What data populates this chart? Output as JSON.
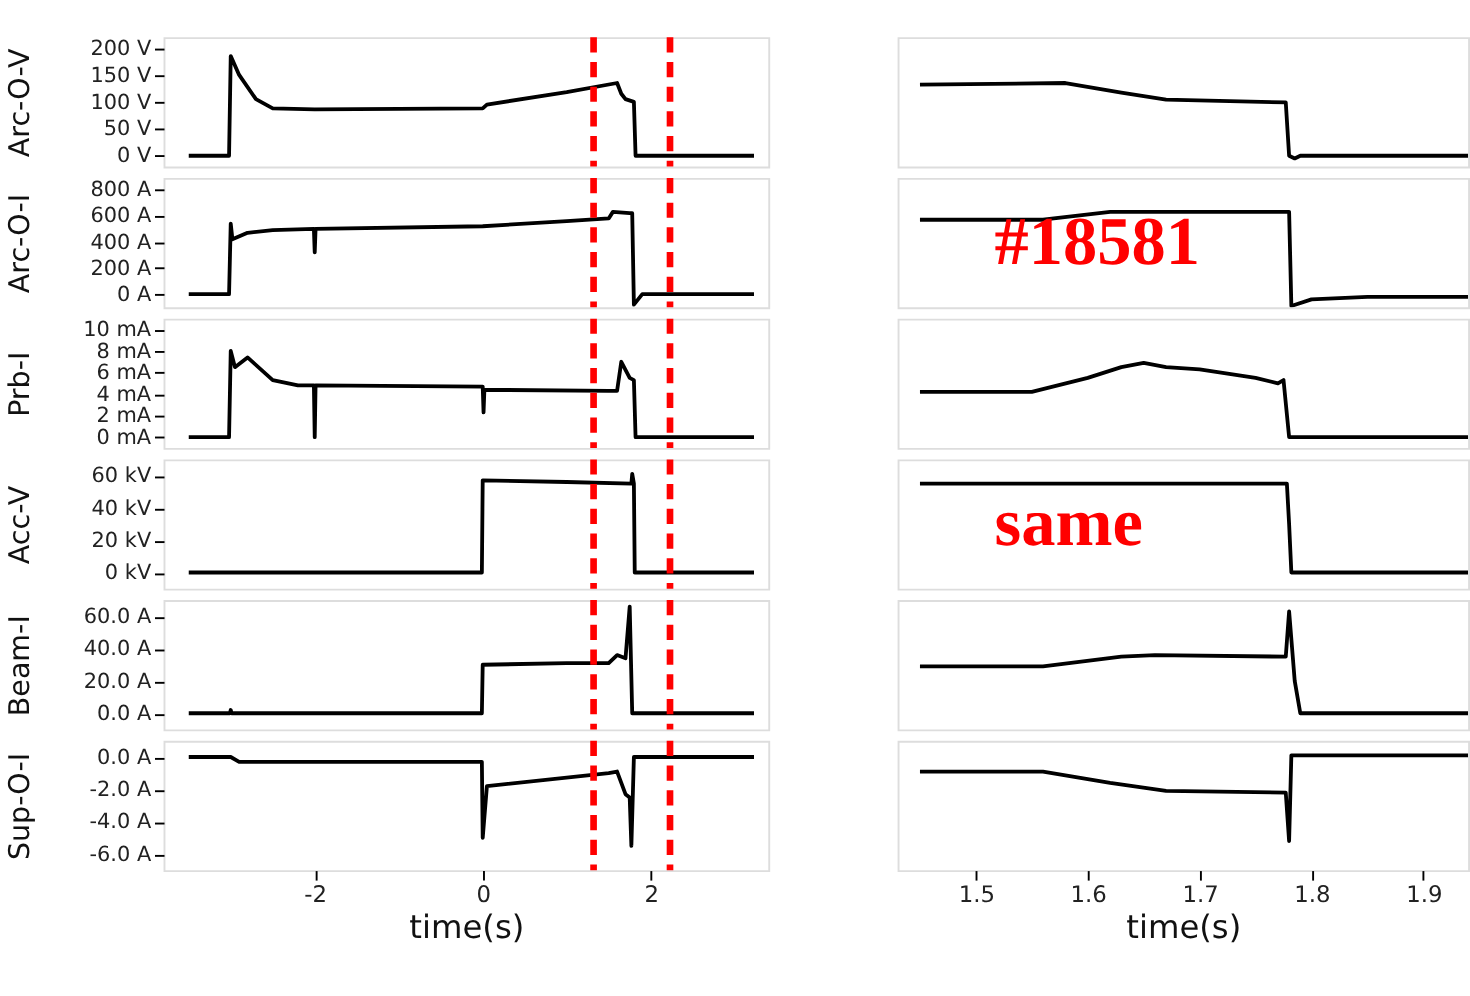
{
  "chart_data": [
    {
      "type": "line",
      "ylabel": "Arc-O-V",
      "tick_labels": "y",
      "xlim": [
        -3.8,
        3.4
      ],
      "ylim": [
        -20,
        220
      ],
      "yticks": [
        {
          "value": 0,
          "label": "0 V"
        },
        {
          "value": 50,
          "label": "50 V"
        },
        {
          "value": 100,
          "label": "100 V"
        },
        {
          "value": 150,
          "label": "150 V"
        },
        {
          "value": 200,
          "label": "200 V"
        }
      ],
      "color": "#000000",
      "ref_lines": [
        {
          "axis": "x",
          "value": 1.32,
          "color": "#ff0000",
          "line_style": "dashed"
        },
        {
          "axis": "x",
          "value": 2.23,
          "color": "#ff0000",
          "line_style": "dashed"
        }
      ],
      "x": [
        -3.5,
        -3.02,
        -3.0,
        -2.9,
        -2.7,
        -2.5,
        -2.0,
        0.0,
        0.05,
        1.0,
        1.6,
        1.65,
        1.7,
        1.8,
        1.82,
        3.23
      ],
      "values": [
        0,
        0,
        185,
        150,
        105,
        88,
        86,
        88,
        95,
        118,
        135,
        115,
        105,
        100,
        0,
        0
      ]
    },
    {
      "type": "line",
      "tick_labels": false,
      "xlim": [
        1.43,
        1.94
      ],
      "ylim": [
        -20,
        220
      ],
      "color": "#000000",
      "x": [
        1.45,
        1.58,
        1.63,
        1.67,
        1.777,
        1.78,
        1.785,
        1.79,
        1.94
      ],
      "values": [
        132,
        135,
        117,
        104,
        99,
        0,
        -5,
        0,
        0
      ]
    },
    {
      "type": "line",
      "ylabel": "Arc-O-I",
      "tick_labels": "y",
      "xlim": [
        -3.8,
        3.4
      ],
      "ylim": [
        -100,
        890
      ],
      "yticks": [
        {
          "value": 0,
          "label": "0 A"
        },
        {
          "value": 200,
          "label": "200 A"
        },
        {
          "value": 400,
          "label": "400 A"
        },
        {
          "value": 600,
          "label": "600 A"
        },
        {
          "value": 800,
          "label": "800 A"
        }
      ],
      "color": "#000000",
      "ref_lines": [
        {
          "axis": "x",
          "value": 1.32,
          "color": "#ff0000",
          "line_style": "dashed"
        },
        {
          "axis": "x",
          "value": 2.23,
          "color": "#ff0000",
          "line_style": "dashed"
        }
      ],
      "x": [
        -3.5,
        -3.02,
        -3.0,
        -2.98,
        -2.8,
        -2.5,
        -2.01,
        -2.0,
        -1.99,
        0.0,
        1.0,
        1.5,
        1.55,
        1.75,
        1.78,
        1.8,
        1.9,
        3.23
      ],
      "values": [
        0,
        0,
        540,
        420,
        470,
        490,
        500,
        320,
        500,
        520,
        560,
        580,
        630,
        620,
        620,
        -80,
        0,
        0
      ]
    },
    {
      "type": "line",
      "tick_labels": false,
      "xlim": [
        1.43,
        1.94
      ],
      "ylim": [
        -100,
        890
      ],
      "color": "#000000",
      "annotations": [
        "#18581"
      ],
      "x": [
        1.45,
        1.56,
        1.62,
        1.78,
        1.782,
        1.8,
        1.85,
        1.9,
        1.94
      ],
      "values": [
        570,
        570,
        630,
        630,
        -90,
        -40,
        -20,
        -20,
        -20
      ]
    },
    {
      "type": "line",
      "ylabel": "Prb-I",
      "tick_labels": "y",
      "xlim": [
        -3.8,
        3.4
      ],
      "ylim": [
        -1,
        11
      ],
      "yticks": [
        {
          "value": 0,
          "label": "0 mA"
        },
        {
          "value": 2,
          "label": "2 mA"
        },
        {
          "value": 4,
          "label": "4 mA"
        },
        {
          "value": 6,
          "label": "6 mA"
        },
        {
          "value": 8,
          "label": "8 mA"
        },
        {
          "value": 10,
          "label": "10 mA"
        }
      ],
      "color": "#000000",
      "ref_lines": [
        {
          "axis": "x",
          "value": 1.32,
          "color": "#ff0000",
          "line_style": "dashed"
        },
        {
          "axis": "x",
          "value": 2.23,
          "color": "#ff0000",
          "line_style": "dashed"
        }
      ],
      "x": [
        -3.5,
        -3.02,
        -3.0,
        -2.95,
        -2.8,
        -2.5,
        -2.2,
        -2.01,
        -2.0,
        -1.99,
        0.0,
        0.01,
        0.02,
        1.5,
        1.6,
        1.65,
        1.75,
        1.8,
        1.82,
        3.23
      ],
      "values": [
        0,
        0,
        8,
        6.5,
        7.4,
        5.3,
        4.8,
        4.8,
        0,
        4.8,
        4.7,
        2.3,
        4.4,
        4.3,
        4.3,
        7,
        5.5,
        5.3,
        0,
        0
      ]
    },
    {
      "type": "line",
      "tick_labels": false,
      "xlim": [
        1.43,
        1.94
      ],
      "ylim": [
        -1,
        11
      ],
      "color": "#000000",
      "x": [
        1.45,
        1.55,
        1.6,
        1.63,
        1.65,
        1.67,
        1.7,
        1.75,
        1.77,
        1.775,
        1.78,
        1.94
      ],
      "values": [
        4.2,
        4.2,
        5.5,
        6.5,
        6.9,
        6.5,
        6.3,
        5.5,
        5.0,
        5.3,
        0,
        0
      ]
    },
    {
      "type": "line",
      "ylabel": "Acc-V",
      "tick_labels": "y",
      "xlim": [
        -3.8,
        3.4
      ],
      "ylim": [
        -10,
        70
      ],
      "yticks": [
        {
          "value": 0,
          "label": "0 kV"
        },
        {
          "value": 20,
          "label": "20 kV"
        },
        {
          "value": 40,
          "label": "40 kV"
        },
        {
          "value": 60,
          "label": "60 kV"
        }
      ],
      "color": "#000000",
      "ref_lines": [
        {
          "axis": "x",
          "value": 1.32,
          "color": "#ff0000",
          "line_style": "dashed"
        },
        {
          "axis": "x",
          "value": 2.23,
          "color": "#ff0000",
          "line_style": "dashed"
        }
      ],
      "x": [
        -3.5,
        -0.01,
        0.0,
        1.0,
        1.77,
        1.78,
        1.8,
        1.81,
        3.23
      ],
      "values": [
        0,
        0,
        57,
        56,
        55,
        61,
        55,
        0,
        0
      ]
    },
    {
      "type": "line",
      "tick_labels": false,
      "xlim": [
        1.43,
        1.94
      ],
      "ylim": [
        -10,
        70
      ],
      "color": "#000000",
      "annotations": [
        "same"
      ],
      "x": [
        1.45,
        1.778,
        1.78,
        1.782,
        1.94
      ],
      "values": [
        55,
        55,
        30,
        0,
        0
      ]
    },
    {
      "type": "line",
      "ylabel": "Beam-I",
      "tick_labels": "y",
      "xlim": [
        -3.8,
        3.4
      ],
      "ylim": [
        -10,
        70
      ],
      "yticks": [
        {
          "value": 0,
          "label": "0.0 A"
        },
        {
          "value": 20,
          "label": "20.0 A"
        },
        {
          "value": 40,
          "label": "40.0 A"
        },
        {
          "value": 60,
          "label": "60.0 A"
        }
      ],
      "color": "#000000",
      "ref_lines": [
        {
          "axis": "x",
          "value": 1.32,
          "color": "#ff0000",
          "line_style": "dashed"
        },
        {
          "axis": "x",
          "value": 2.23,
          "color": "#ff0000",
          "line_style": "dashed"
        }
      ],
      "x": [
        -3.5,
        -3.01,
        -3.0,
        -2.99,
        -0.01,
        0.0,
        1.0,
        1.5,
        1.6,
        1.7,
        1.75,
        1.78,
        3.23
      ],
      "values": [
        0,
        0,
        2,
        0,
        0,
        30,
        31,
        31,
        36,
        34,
        66,
        0,
        0
      ]
    },
    {
      "type": "line",
      "tick_labels": false,
      "xlim": [
        1.43,
        1.94
      ],
      "ylim": [
        -10,
        70
      ],
      "color": "#000000",
      "x": [
        1.45,
        1.56,
        1.63,
        1.66,
        1.777,
        1.78,
        1.785,
        1.79,
        1.94
      ],
      "values": [
        29,
        29,
        35,
        36,
        35,
        63,
        20,
        0,
        0
      ]
    },
    {
      "type": "line",
      "ylabel": "Sup-O-I",
      "xlabel": "time(s)",
      "xlim": [
        -3.8,
        3.4
      ],
      "xticks": [
        -2,
        0,
        2
      ],
      "ylim": [
        -7,
        1
      ],
      "yticks": [
        {
          "value": 0,
          "label": "0.0 A"
        },
        {
          "value": -2,
          "label": "-2.0 A"
        },
        {
          "value": -4,
          "label": "-4.0 A"
        },
        {
          "value": -6,
          "label": "-6.0 A"
        }
      ],
      "color": "#000000",
      "ref_lines": [
        {
          "axis": "x",
          "value": 1.32,
          "color": "#ff0000",
          "line_style": "dashed"
        },
        {
          "axis": "x",
          "value": 2.23,
          "color": "#ff0000",
          "line_style": "dashed"
        }
      ],
      "x": [
        -3.5,
        -3.0,
        -2.9,
        -0.01,
        0.0,
        0.05,
        1.5,
        1.6,
        1.7,
        1.75,
        1.77,
        1.8,
        3.23
      ],
      "values": [
        0,
        0,
        -0.3,
        -0.3,
        -5,
        -1.8,
        -1,
        -0.9,
        -2.3,
        -2.5,
        -5.5,
        0,
        0
      ]
    },
    {
      "type": "line",
      "xlabel": "time(s)",
      "tick_labels": "x",
      "xlim": [
        1.43,
        1.94
      ],
      "xticks": [
        1.5,
        1.6,
        1.7,
        1.8,
        1.9
      ],
      "ylim": [
        -7,
        1
      ],
      "color": "#000000",
      "x": [
        1.45,
        1.56,
        1.62,
        1.67,
        1.777,
        1.78,
        1.782,
        1.94
      ],
      "values": [
        -0.9,
        -0.9,
        -1.6,
        -2.1,
        -2.2,
        -5.2,
        0.1,
        0.1
      ]
    }
  ]
}
